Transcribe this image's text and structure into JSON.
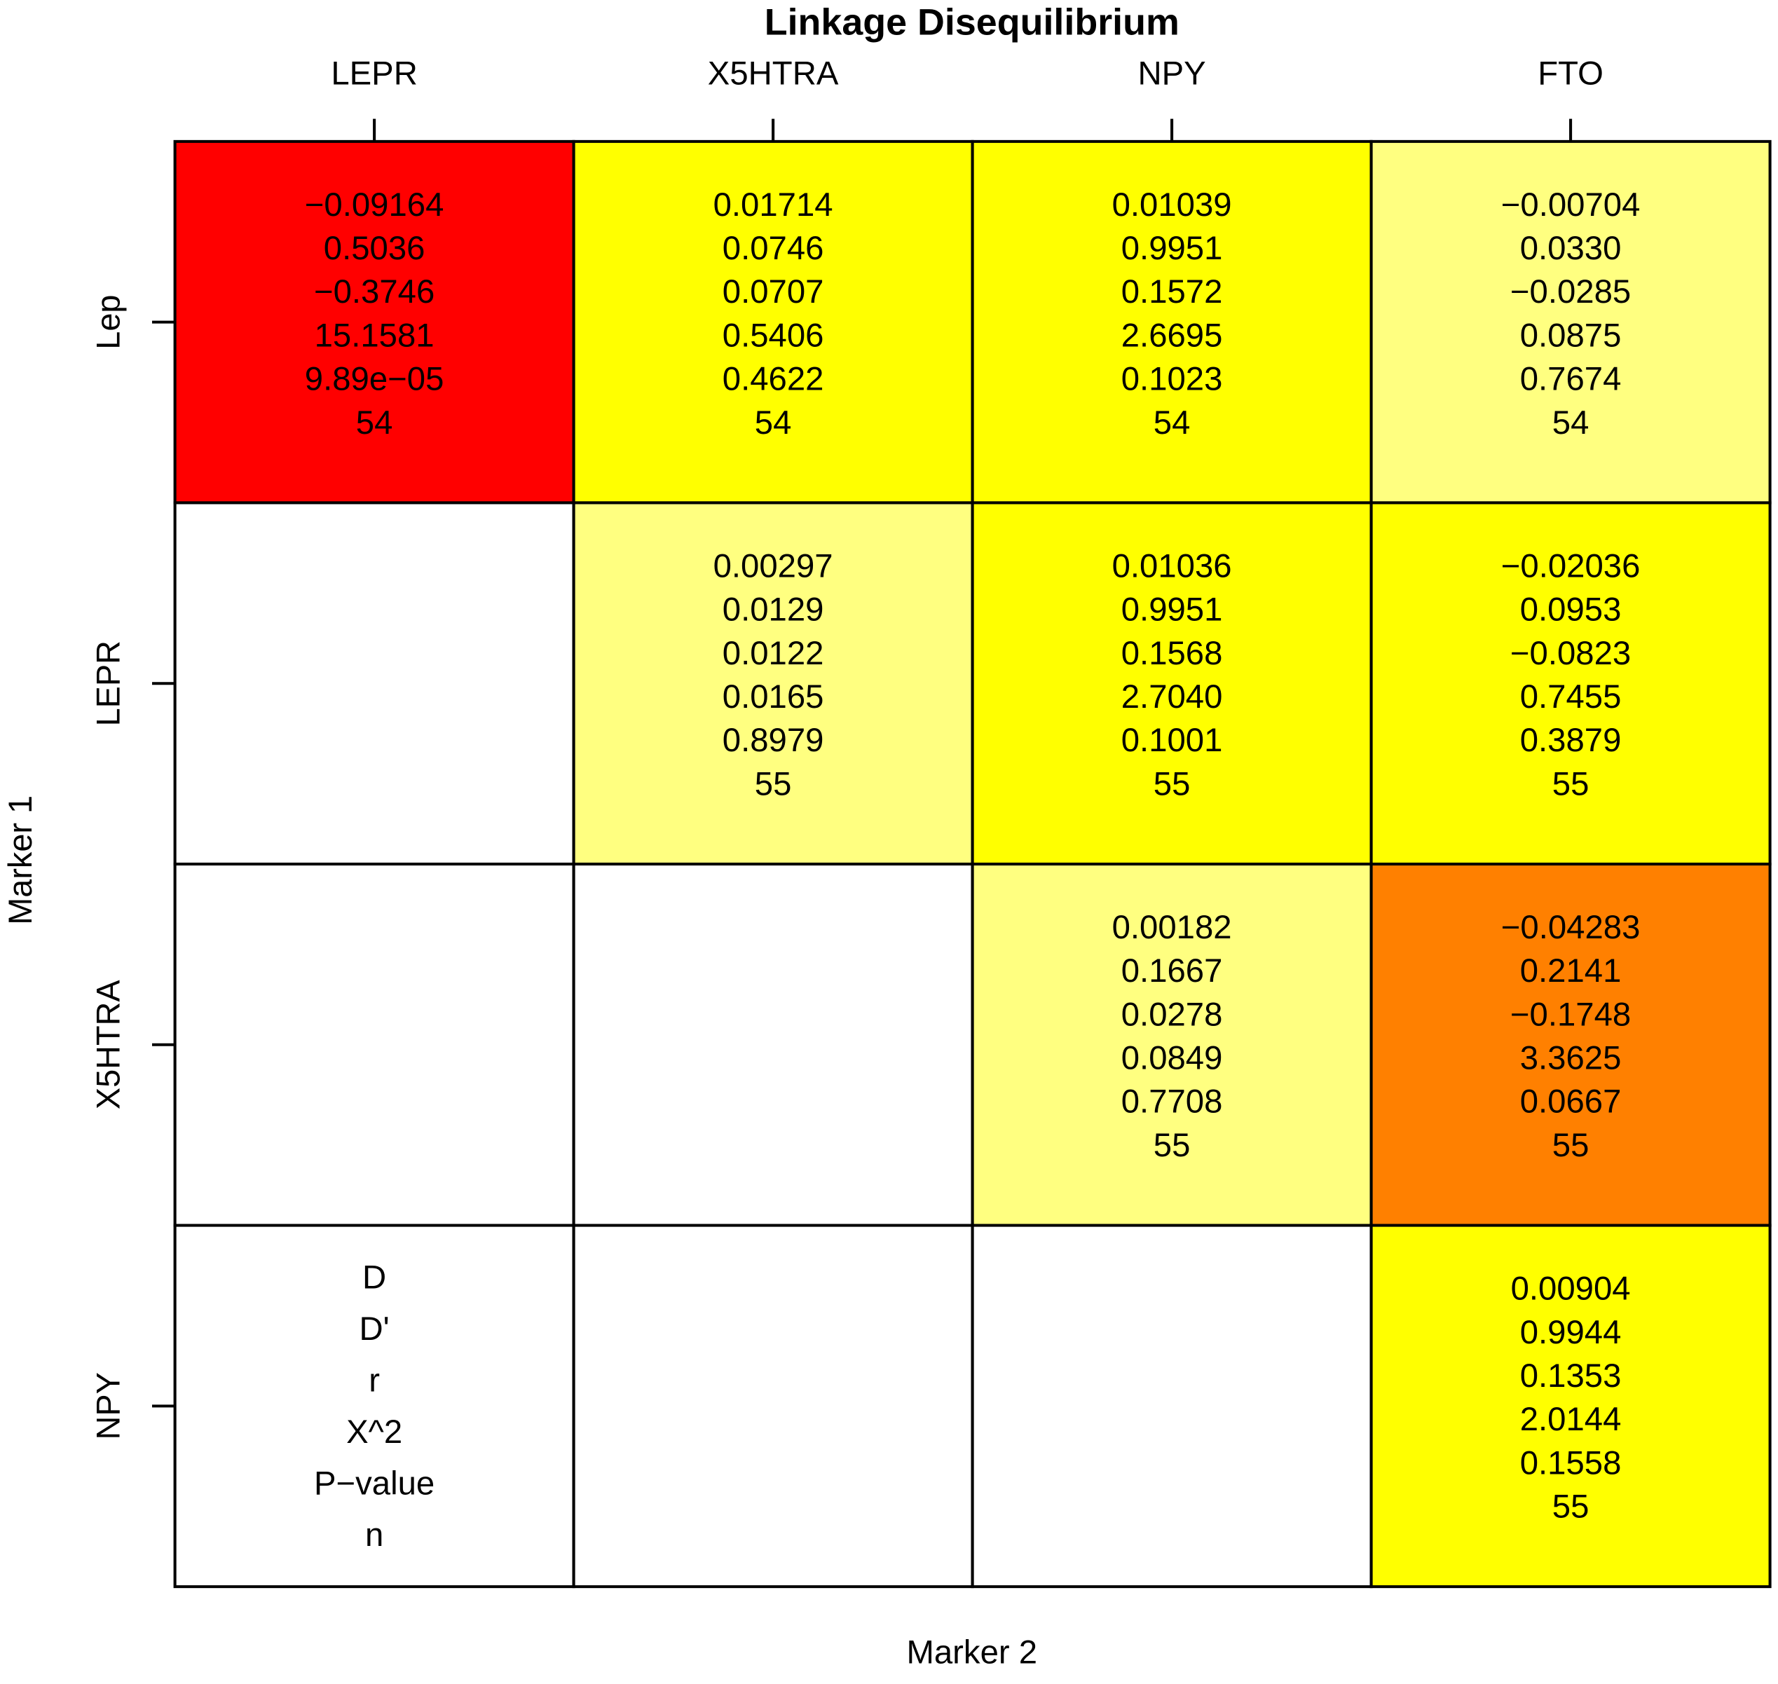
{
  "chart_data": {
    "type": "heatmap",
    "title": "Linkage Disequilibrium",
    "x_label": "Marker 2",
    "y_label": "Marker 1",
    "x_categories": [
      "LEPR",
      "X5HTRA",
      "NPY",
      "FTO"
    ],
    "y_categories": [
      "Lep",
      "LEPR",
      "X5HTRA",
      "NPY"
    ],
    "statistics": [
      "D",
      "D'",
      "r",
      "X^2",
      "P−value",
      "n"
    ],
    "cells": [
      [
        {
          "color": "#ff0000",
          "lines": [
            "−0.09164",
            "0.5036",
            "−0.3746",
            "15.1581",
            "9.89e−05",
            "54"
          ]
        },
        {
          "color": "#ffff00",
          "lines": [
            "0.01714",
            "0.0746",
            "0.0707",
            "0.5406",
            "0.4622",
            "54"
          ]
        },
        {
          "color": "#ffff00",
          "lines": [
            "0.01039",
            "0.9951",
            "0.1572",
            "2.6695",
            "0.1023",
            "54"
          ]
        },
        {
          "color": "#ffff80",
          "lines": [
            "−0.00704",
            "0.0330",
            "−0.0285",
            "0.0875",
            "0.7674",
            "54"
          ]
        }
      ],
      [
        null,
        {
          "color": "#ffff80",
          "lines": [
            "0.00297",
            "0.0129",
            "0.0122",
            "0.0165",
            "0.8979",
            "55"
          ]
        },
        {
          "color": "#ffff00",
          "lines": [
            "0.01036",
            "0.9951",
            "0.1568",
            "2.7040",
            "0.1001",
            "55"
          ]
        },
        {
          "color": "#ffff00",
          "lines": [
            "−0.02036",
            "0.0953",
            "−0.0823",
            "0.7455",
            "0.3879",
            "55"
          ]
        }
      ],
      [
        null,
        null,
        {
          "color": "#ffff80",
          "lines": [
            "0.00182",
            "0.1667",
            "0.0278",
            "0.0849",
            "0.7708",
            "55"
          ]
        },
        {
          "color": "#ff8000",
          "lines": [
            "−0.04283",
            "0.2141",
            "−0.1748",
            "3.3625",
            "0.0667",
            "55"
          ]
        }
      ],
      [
        null,
        null,
        null,
        {
          "color": "#ffff00",
          "lines": [
            "0.00904",
            "0.9944",
            "0.1353",
            "2.0144",
            "0.1558",
            "55"
          ]
        }
      ]
    ]
  }
}
